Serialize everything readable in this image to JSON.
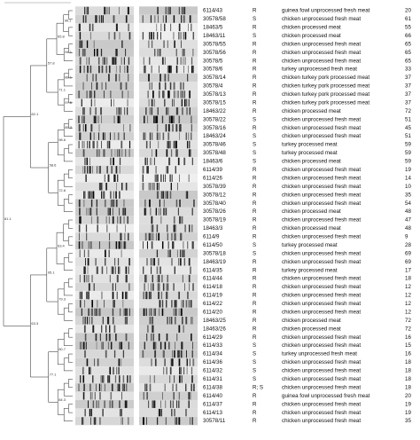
{
  "dendrogram": {
    "node_labels": [
      "81.1",
      "82.1",
      "63.3",
      "57.8",
      "58.6",
      "95.1",
      "77.1",
      "65.8",
      "71.1",
      "98.6",
      "72.8",
      "63.4",
      "79.3",
      "80.7",
      "84.3",
      "96.1",
      "94.1",
      "88.1",
      "97.5",
      "85.3"
    ]
  },
  "table": {
    "rows": [
      [
        "6114/43",
        "R",
        "guinea fowl unprocessed fresh meat",
        20
      ],
      [
        "30578/58",
        "S",
        "chicken unprocessed fresh meat",
        61
      ],
      [
        "18463/5",
        "R",
        "chicken processed meat",
        55
      ],
      [
        "18463/11",
        "S",
        "chicken processed meat",
        66
      ],
      [
        "30578/55",
        "R",
        "chicken unprocessed fresh meat",
        65
      ],
      [
        "30578/56",
        "R",
        "chicken unprocessed fresh meat",
        65
      ],
      [
        "30578/5",
        "R",
        "chicken unprocessed fresh meat",
        65
      ],
      [
        "30578/6",
        "R",
        "turkey unprocessed fresh meat",
        33
      ],
      [
        "30578/14",
        "R",
        "chicken turkey pork processed meat",
        37
      ],
      [
        "30578/4",
        "R",
        "chicken turkey pork processed meat",
        37
      ],
      [
        "30578/13",
        "R",
        "chicken turkey pork processed meat",
        37
      ],
      [
        "30578/15",
        "R",
        "chicken turkey pork processed meat",
        37
      ],
      [
        "18463/22",
        "R",
        "chicken processed meat",
        72
      ],
      [
        "30578/22",
        "S",
        "chicken unprocessed fresh meat",
        51
      ],
      [
        "30578/16",
        "R",
        "chicken unprocessed fresh meat",
        45
      ],
      [
        "18463/24",
        "S",
        "chicken unprocessed fresh meat",
        51
      ],
      [
        "30578/46",
        "S",
        "turkey processed meat",
        59
      ],
      [
        "30578/48",
        "S",
        "turkey processed meat",
        59
      ],
      [
        "18463/6",
        "S",
        "chicken processed meat",
        59
      ],
      [
        "6114/39",
        "R",
        "chicken unprocessed fresh meat",
        19
      ],
      [
        "6114/26",
        "R",
        "chicken unprocessed fresh meat",
        14
      ],
      [
        "30578/39",
        "R",
        "chicken unprocessed fresh meat",
        10
      ],
      [
        "30578/12",
        "R",
        "chicken unprocessed fresh meat",
        35
      ],
      [
        "30578/40",
        "R",
        "chicken unprocessed fresh meat",
        54
      ],
      [
        "30578/26",
        "R",
        "chicken processed meat",
        48
      ],
      [
        "30578/19",
        "R",
        "chicken unprocessed fresh meat",
        47
      ],
      [
        "18463/3",
        "R",
        "chicken processed meat",
        48
      ],
      [
        "6114/9",
        "R",
        "chicken unprocessed fresh meat",
        9
      ],
      [
        "6114/50",
        "S",
        "turkey processed meat",
        28
      ],
      [
        "30578/18",
        "S",
        "chicken unprocessed fresh meat",
        69
      ],
      [
        "18463/19",
        "R",
        "chicken unprocessed fresh meat",
        69
      ],
      [
        "6114/35",
        "R",
        "turkey processed meat",
        17
      ],
      [
        "6114/44",
        "R",
        "chicken unprocessed fresh meat",
        18
      ],
      [
        "6114/18",
        "R",
        "chicken unprocessed fresh meat",
        12
      ],
      [
        "6114/19",
        "R",
        "chicken unprocessed fresh meat",
        12
      ],
      [
        "6114/22",
        "R",
        "chicken unprocessed fresh meat",
        12
      ],
      [
        "6114/20",
        "R",
        "chicken unprocessed fresh meat",
        12
      ],
      [
        "18463/25",
        "R",
        "chicken processed meat",
        72
      ],
      [
        "18463/26",
        "R",
        "chicken processed meat",
        72
      ],
      [
        "6114/29",
        "R",
        "chicken unprocessed fresh meat",
        16
      ],
      [
        "6114/33",
        "S",
        "chicken unprocessed fresh meat",
        15
      ],
      [
        "6114/34",
        "S",
        "turkey unprocessed fresh meat",
        16
      ],
      [
        "6114/36",
        "S",
        "chicken unprocessed fresh meat",
        18
      ],
      [
        "6114/32",
        "S",
        "chicken unprocessed fresh meat",
        18
      ],
      [
        "6114/31",
        "S",
        "chicken unprocessed fresh meat",
        18
      ],
      [
        "6114/38",
        "R; S",
        "chicken unprocessed fresh meat",
        18
      ],
      [
        "6114/40",
        "R",
        "guinea fowl unprocessed fresh meat",
        20
      ],
      [
        "6114/37",
        "R",
        "chicken unprocessed fresh meat",
        19
      ],
      [
        "6114/13",
        "R",
        "chicken unprocessed fresh meat",
        19
      ],
      [
        "30578/11",
        "R",
        "chicken unprocessed fresh meat",
        35
      ]
    ]
  }
}
